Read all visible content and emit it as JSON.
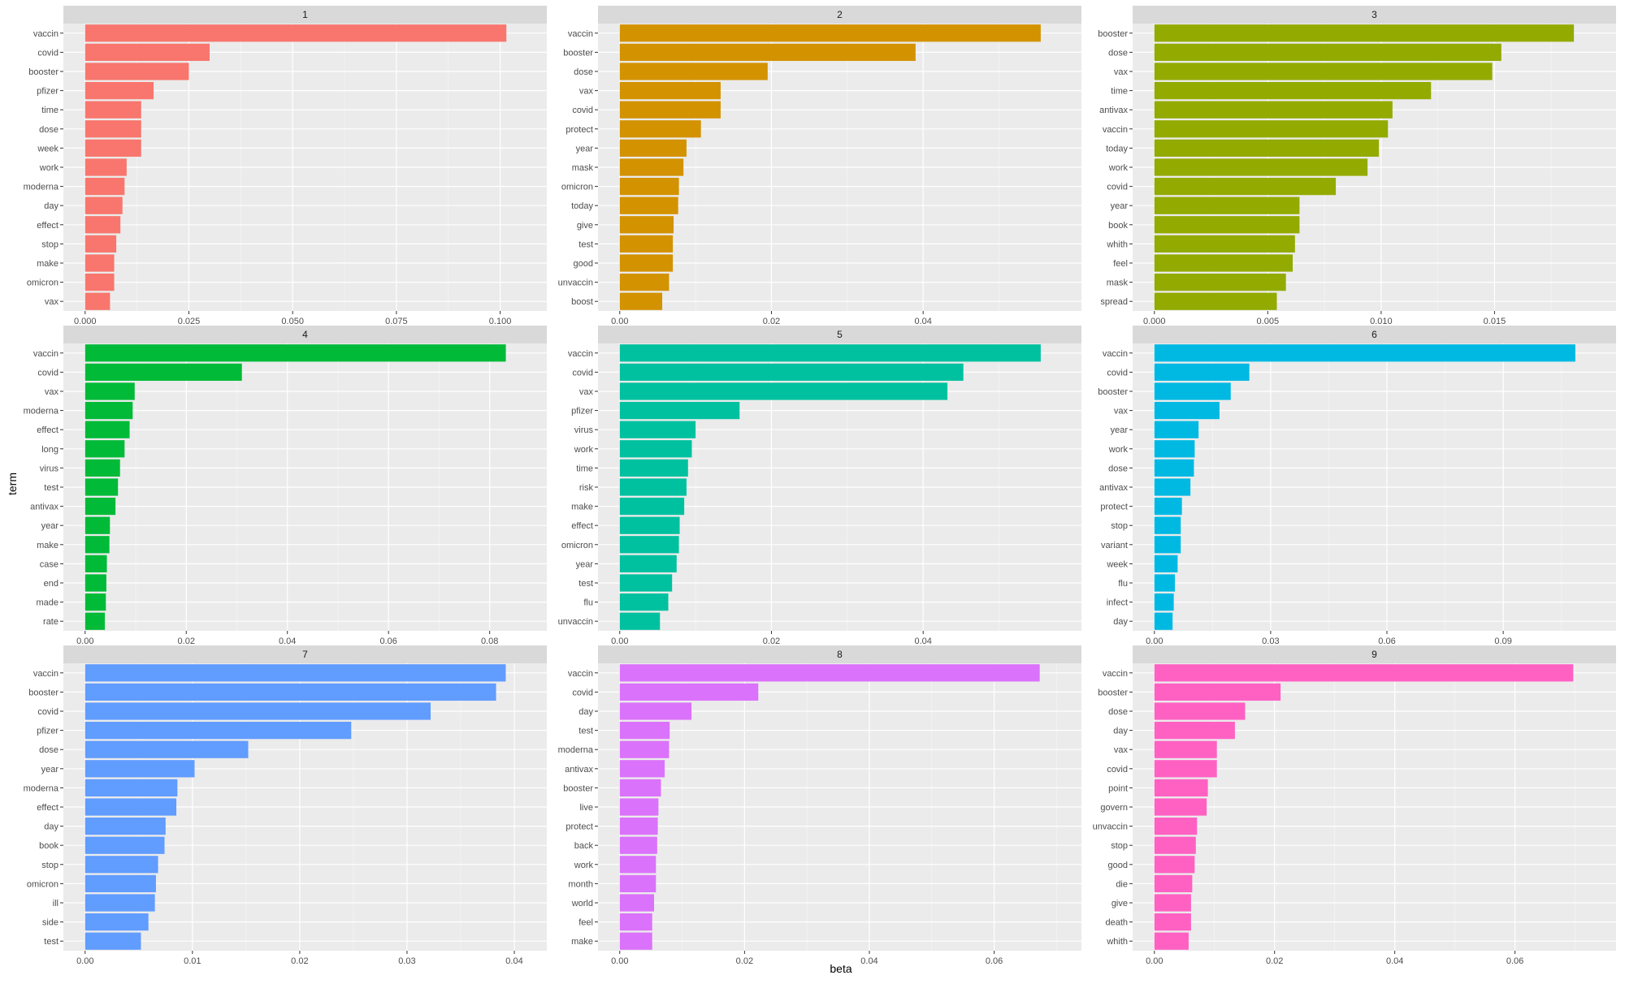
{
  "chart_data": {
    "type": "bar",
    "orientation": "horizontal",
    "layout": "facet 3x3 small multiples, free scales",
    "xlabel": "beta",
    "ylabel": "term",
    "grid": true,
    "legend": "none",
    "panels": [
      {
        "title": "1",
        "color": "#F8766D",
        "xlim": [
          0,
          0.106
        ],
        "ticks": [
          0,
          0.025,
          0.05,
          0.075,
          0.1
        ],
        "tick_labels": [
          "0.000",
          "0.025",
          "0.050",
          "0.075",
          "0.100"
        ],
        "terms": [
          "vaccin",
          "covid",
          "booster",
          "pfizer",
          "time",
          "dose",
          "week",
          "work",
          "moderna",
          "day",
          "effect",
          "stop",
          "make",
          "omicron",
          "vax"
        ],
        "values": [
          0.1015,
          0.03,
          0.025,
          0.0165,
          0.0135,
          0.0135,
          0.0135,
          0.01,
          0.0095,
          0.009,
          0.0085,
          0.0075,
          0.007,
          0.007,
          0.006
        ]
      },
      {
        "title": "2",
        "color": "#D39200",
        "xlim": [
          0,
          0.058
        ],
        "ticks": [
          0,
          0.02,
          0.04
        ],
        "tick_labels": [
          "0.00",
          "0.02",
          "0.04"
        ],
        "terms": [
          "vaccin",
          "booster",
          "dose",
          "vax",
          "covid",
          "protect",
          "year",
          "mask",
          "omicron",
          "today",
          "give",
          "test",
          "good",
          "unvaccin",
          "boost"
        ],
        "values": [
          0.0555,
          0.039,
          0.0195,
          0.0133,
          0.0133,
          0.0107,
          0.0088,
          0.0084,
          0.0078,
          0.0077,
          0.0071,
          0.007,
          0.007,
          0.0065,
          0.0056
        ]
      },
      {
        "title": "3",
        "color": "#93AA00",
        "xlim": [
          0,
          0.0194
        ],
        "ticks": [
          0,
          0.005,
          0.01,
          0.015
        ],
        "tick_labels": [
          "0.000",
          "0.005",
          "0.010",
          "0.015"
        ],
        "terms": [
          "booster",
          "dose",
          "vax",
          "time",
          "antivax",
          "vaccin",
          "today",
          "work",
          "covid",
          "year",
          "book",
          "whith",
          "feel",
          "mask",
          "spread"
        ],
        "values": [
          0.0185,
          0.0153,
          0.0149,
          0.0122,
          0.0105,
          0.0103,
          0.0099,
          0.0094,
          0.008,
          0.0064,
          0.0064,
          0.0062,
          0.0061,
          0.0058,
          0.0054
        ]
      },
      {
        "title": "4",
        "color": "#00BA38",
        "xlim": [
          0,
          0.087
        ],
        "ticks": [
          0,
          0.02,
          0.04,
          0.06,
          0.08
        ],
        "tick_labels": [
          "0.00",
          "0.02",
          "0.04",
          "0.06",
          "0.08"
        ],
        "terms": [
          "vaccin",
          "covid",
          "vax",
          "moderna",
          "effect",
          "long",
          "virus",
          "test",
          "antivax",
          "year",
          "make",
          "case",
          "end",
          "made",
          "rate"
        ],
        "values": [
          0.0832,
          0.031,
          0.0098,
          0.0094,
          0.0088,
          0.0078,
          0.0069,
          0.0065,
          0.006,
          0.0049,
          0.0048,
          0.0043,
          0.0042,
          0.0041,
          0.0039
        ]
      },
      {
        "title": "5",
        "color": "#00C19F",
        "xlim": [
          0,
          0.058
        ],
        "ticks": [
          0,
          0.02,
          0.04
        ],
        "tick_labels": [
          "0.00",
          "0.02",
          "0.04"
        ],
        "terms": [
          "vaccin",
          "covid",
          "vax",
          "pfizer",
          "virus",
          "work",
          "time",
          "risk",
          "make",
          "effect",
          "omicron",
          "year",
          "test",
          "flu",
          "unvaccin"
        ],
        "values": [
          0.0555,
          0.0453,
          0.0432,
          0.0158,
          0.01,
          0.0095,
          0.009,
          0.0088,
          0.0085,
          0.0079,
          0.0078,
          0.0075,
          0.0069,
          0.0064,
          0.0053
        ]
      },
      {
        "title": "6",
        "color": "#00B9E3",
        "xlim": [
          0,
          0.1135
        ],
        "ticks": [
          0,
          0.03,
          0.06,
          0.09
        ],
        "tick_labels": [
          "0.00",
          "0.03",
          "0.06",
          "0.09"
        ],
        "terms": [
          "vaccin",
          "covid",
          "booster",
          "vax",
          "year",
          "work",
          "dose",
          "antivax",
          "protect",
          "stop",
          "variant",
          "week",
          "flu",
          "infect",
          "day"
        ],
        "values": [
          0.1086,
          0.0245,
          0.0197,
          0.0168,
          0.0114,
          0.0104,
          0.0102,
          0.0093,
          0.0071,
          0.0068,
          0.0068,
          0.006,
          0.0053,
          0.005,
          0.0047
        ]
      },
      {
        "title": "7",
        "color": "#619CFF",
        "xlim": [
          0,
          0.041
        ],
        "ticks": [
          0,
          0.01,
          0.02,
          0.03,
          0.04
        ],
        "tick_labels": [
          "0.00",
          "0.01",
          "0.02",
          "0.03",
          "0.04"
        ],
        "terms": [
          "vaccin",
          "booster",
          "covid",
          "pfizer",
          "dose",
          "year",
          "moderna",
          "effect",
          "day",
          "book",
          "stop",
          "omicron",
          "ill",
          "side",
          "test"
        ],
        "values": [
          0.0392,
          0.0383,
          0.0322,
          0.0248,
          0.0152,
          0.0102,
          0.0086,
          0.0085,
          0.0075,
          0.0074,
          0.0068,
          0.0066,
          0.0065,
          0.0059,
          0.0052
        ]
      },
      {
        "title": "8",
        "color": "#DB72FB",
        "xlim": [
          0,
          0.0705
        ],
        "ticks": [
          0,
          0.02,
          0.04,
          0.06
        ],
        "tick_labels": [
          "0.00",
          "0.02",
          "0.04",
          "0.06"
        ],
        "terms": [
          "vaccin",
          "covid",
          "day",
          "test",
          "moderna",
          "antivax",
          "booster",
          "live",
          "protect",
          "back",
          "work",
          "month",
          "world",
          "feel",
          "make"
        ],
        "values": [
          0.0673,
          0.0222,
          0.0115,
          0.008,
          0.0079,
          0.0072,
          0.0066,
          0.0062,
          0.0061,
          0.006,
          0.0058,
          0.0058,
          0.0055,
          0.0052,
          0.0052
        ]
      },
      {
        "title": "9",
        "color": "#FF61C3",
        "xlim": [
          0,
          0.0732
        ],
        "ticks": [
          0,
          0.02,
          0.04,
          0.06
        ],
        "tick_labels": [
          "0.00",
          "0.02",
          "0.04",
          "0.06"
        ],
        "terms": [
          "vaccin",
          "booster",
          "dose",
          "day",
          "vax",
          "covid",
          "point",
          "govern",
          "unvaccin",
          "stop",
          "good",
          "die",
          "give",
          "death",
          "whith"
        ],
        "values": [
          0.0697,
          0.021,
          0.0151,
          0.0134,
          0.0104,
          0.0104,
          0.0089,
          0.0087,
          0.0071,
          0.0069,
          0.0067,
          0.0063,
          0.0061,
          0.0061,
          0.0057
        ]
      }
    ]
  }
}
